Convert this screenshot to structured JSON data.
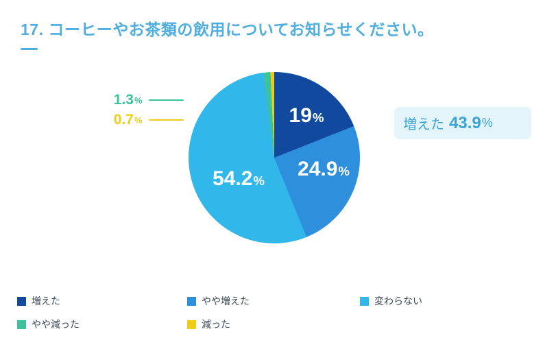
{
  "page": {
    "title": "17. コーヒーやお茶類の飲用についてお知らせください。",
    "title_color": "#4FAEDE",
    "background": "#FFFFFF"
  },
  "chart_data": {
    "type": "pie",
    "title": "17. コーヒーやお茶類の飲用についてお知らせください。",
    "unit": "%",
    "start_angle_deg": 0,
    "direction": "clockwise",
    "legend_position": "bottom",
    "slices": [
      {
        "label": "増えた",
        "value": 19,
        "display": "19",
        "color": "#10499E",
        "label_placement": "inside"
      },
      {
        "label": "やや増えた",
        "value": 24.9,
        "display": "24.9",
        "color": "#2E8FDC",
        "label_placement": "inside"
      },
      {
        "label": "変わらない",
        "value": 54.2,
        "display": "54.2",
        "color": "#31B7E9",
        "label_placement": "inside"
      },
      {
        "label": "やや減った",
        "value": 1.3,
        "display": "1.3",
        "color": "#3DC39C",
        "label_placement": "outside-left"
      },
      {
        "label": "減った",
        "value": 0.7,
        "display": "0.7",
        "color": "#F0CC16",
        "label_placement": "outside-left"
      }
    ]
  },
  "callout": {
    "label": "増えた",
    "value": "43.9",
    "unit": "%",
    "background": "#E4F4FB",
    "text_color": "#3BA3D8"
  }
}
